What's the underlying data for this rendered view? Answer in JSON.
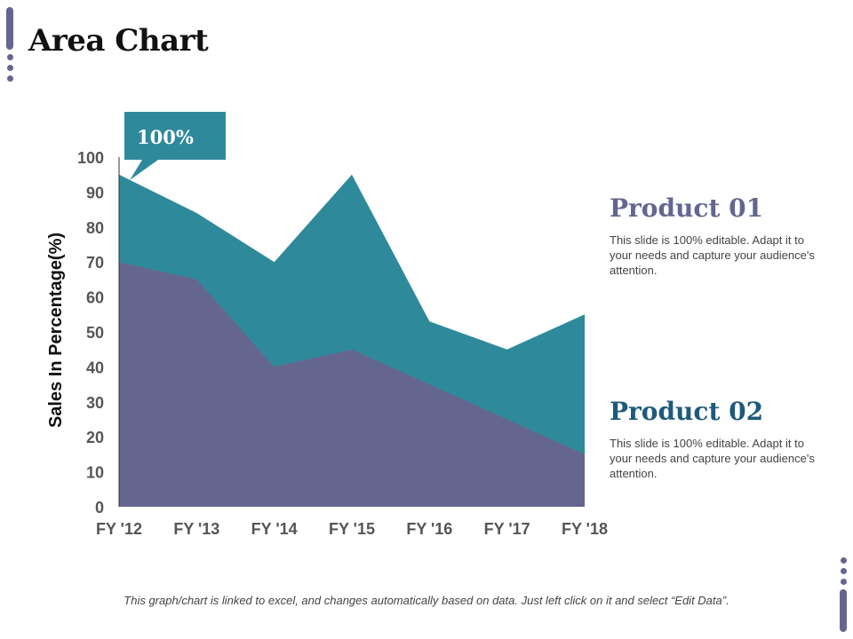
{
  "page": {
    "title": "Area Chart",
    "footnote": "This graph/chart is linked to excel, and changes automatically based on data. Just left click on it and select “Edit Data”."
  },
  "callout": {
    "label": "100%",
    "color": "#2e8a9b"
  },
  "products": [
    {
      "title": "Product 01",
      "description": "This slide is 100% editable. Adapt it to your needs and capture your audience's attention.",
      "color": "#65668f"
    },
    {
      "title": "Product 02",
      "description": "This slide is 100% editable. Adapt it to your needs and capture your audience's attention.",
      "color": "#1f5a7a"
    }
  ],
  "colors": {
    "accent": "#65668f",
    "teal": "#2e8a9b"
  },
  "chart_data": {
    "type": "area",
    "stacked": false,
    "title": "",
    "xlabel": "",
    "ylabel": "Sales In Percentage(%)",
    "categories": [
      "FY '12",
      "FY '13",
      "FY '14",
      "FY '15",
      "FY '16",
      "FY '17",
      "FY '18"
    ],
    "ylim": [
      0,
      100
    ],
    "yticks": [
      0,
      10,
      20,
      30,
      40,
      50,
      60,
      70,
      80,
      90,
      100
    ],
    "series": [
      {
        "name": "Product 01",
        "values": [
          95,
          84,
          70,
          95,
          53,
          45,
          55
        ],
        "color": "#2e8a9b"
      },
      {
        "name": "Product 02",
        "values": [
          70,
          65,
          40,
          45,
          35,
          25,
          15
        ],
        "color": "#65668f"
      }
    ],
    "grid": false,
    "legend": "right"
  }
}
